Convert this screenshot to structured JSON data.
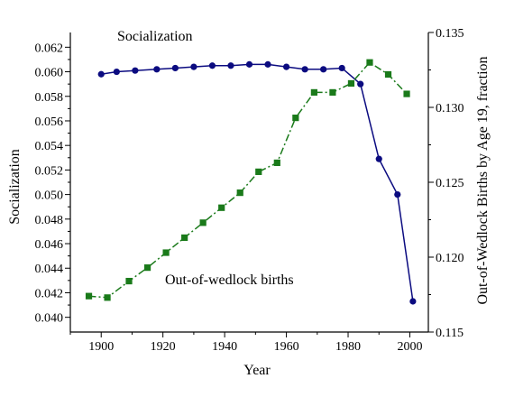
{
  "chart_data": {
    "type": "line",
    "x_label": "Year",
    "y_left_label": "Socialization",
    "y_right_label": "Out-of-Wedlock Births by Age 19, fraction",
    "annotations": {
      "socialization": "Socialization",
      "births": "Out-of-wedlock births"
    },
    "x_range": [
      1890,
      2006
    ],
    "y_left_range": [
      0.0388,
      0.0632
    ],
    "y_right_range": [
      0.115,
      0.135
    ],
    "x_ticks": [
      {
        "v": 1900,
        "label": "1900"
      },
      {
        "v": 1920,
        "label": "1920"
      },
      {
        "v": 1940,
        "label": "1940"
      },
      {
        "v": 1960,
        "label": "1960"
      },
      {
        "v": 1980,
        "label": "1980"
      },
      {
        "v": 2000,
        "label": "2000"
      }
    ],
    "y_left_ticks": [
      {
        "v": 0.04,
        "label": "0.040"
      },
      {
        "v": 0.042,
        "label": "0.042"
      },
      {
        "v": 0.044,
        "label": "0.044"
      },
      {
        "v": 0.046,
        "label": "0.046"
      },
      {
        "v": 0.048,
        "label": "0.048"
      },
      {
        "v": 0.05,
        "label": "0.050"
      },
      {
        "v": 0.052,
        "label": "0.052"
      },
      {
        "v": 0.054,
        "label": "0.054"
      },
      {
        "v": 0.056,
        "label": "0.056"
      },
      {
        "v": 0.058,
        "label": "0.058"
      },
      {
        "v": 0.06,
        "label": "0.060"
      },
      {
        "v": 0.062,
        "label": "0.062"
      }
    ],
    "y_right_ticks": [
      {
        "v": 0.115,
        "label": "0.115"
      },
      {
        "v": 0.12,
        "label": "0.120"
      },
      {
        "v": 0.125,
        "label": "0.125"
      },
      {
        "v": 0.13,
        "label": "0.130"
      },
      {
        "v": 0.135,
        "label": "0.135"
      }
    ],
    "series": [
      {
        "key": "socialization",
        "axis": "left",
        "color": "#0b0b80",
        "marker": "circle",
        "line_style": "solid",
        "points": [
          [
            1900,
            0.0598
          ],
          [
            1905,
            0.06
          ],
          [
            1911,
            0.0601
          ],
          [
            1918,
            0.0602
          ],
          [
            1924,
            0.0603
          ],
          [
            1930,
            0.0604
          ],
          [
            1936,
            0.0605
          ],
          [
            1942,
            0.0605
          ],
          [
            1948,
            0.0606
          ],
          [
            1954,
            0.0606
          ],
          [
            1960,
            0.0604
          ],
          [
            1966,
            0.0602
          ],
          [
            1972,
            0.0602
          ],
          [
            1978,
            0.0603
          ],
          [
            1984,
            0.059
          ],
          [
            1990,
            0.0529
          ],
          [
            1996,
            0.05
          ],
          [
            2001,
            0.0413
          ]
        ]
      },
      {
        "key": "births",
        "axis": "right",
        "color": "#1a7a1a",
        "marker": "square",
        "line_style": "dash-dot",
        "points": [
          [
            1896,
            0.1174
          ],
          [
            1902,
            0.1173
          ],
          [
            1909,
            0.1184
          ],
          [
            1915,
            0.1193
          ],
          [
            1921,
            0.1203
          ],
          [
            1927,
            0.1213
          ],
          [
            1933,
            0.1223
          ],
          [
            1939,
            0.1233
          ],
          [
            1945,
            0.1243
          ],
          [
            1951,
            0.1257
          ],
          [
            1957,
            0.1263
          ],
          [
            1963,
            0.1293
          ],
          [
            1969,
            0.131
          ],
          [
            1975,
            0.131
          ],
          [
            1981,
            0.1316
          ],
          [
            1987,
            0.133
          ],
          [
            1993,
            0.1322
          ],
          [
            1999,
            0.1309
          ]
        ]
      }
    ]
  }
}
